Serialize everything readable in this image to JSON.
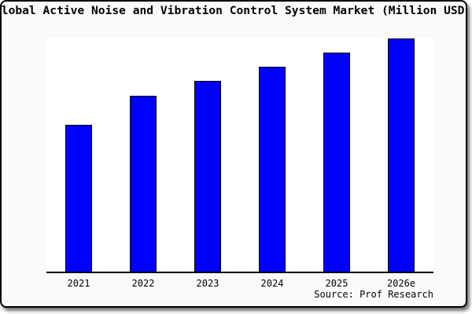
{
  "title": "Global Active Noise and Vibration Control System Market (Million USD)",
  "source": "Source: Prof Research",
  "colors": {
    "bar_fill": "#0000ff",
    "bar_border": "#000000",
    "card_background": "#fafafa",
    "plot_background": "#ffffff",
    "axis": "#000000",
    "card_border": "#000000",
    "text": "#000000"
  },
  "chart_data": {
    "type": "bar",
    "categories": [
      "2021",
      "2022",
      "2023",
      "2024",
      "2025",
      "2026e"
    ],
    "values": [
      62.9,
      75.3,
      81.9,
      88.0,
      94.0,
      100.0
    ],
    "values_estimated": true,
    "title": "Global Active Noise and Vibration Control System Market (Million USD)",
    "xlabel": "",
    "ylabel": "",
    "ylim": [
      0,
      101
    ],
    "grid": false,
    "legend": false,
    "y_axis_visible": false,
    "annotation": "Source: Prof Research"
  }
}
